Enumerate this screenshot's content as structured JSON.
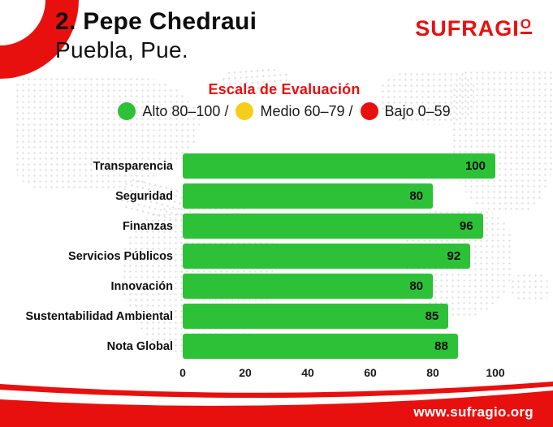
{
  "header": {
    "rank_name": "2. Pepe Chedraui",
    "location": "Puebla, Pue.",
    "logo_text": "SUFRAGI",
    "logo_o": "O"
  },
  "legend": {
    "title": "Escala de Evaluación",
    "items": [
      {
        "name": "high",
        "label": "Alto 80–100 /",
        "color": "#2DC137"
      },
      {
        "name": "medium",
        "label": "Medio 60–79 /",
        "color": "#F5CE1B"
      },
      {
        "name": "low",
        "label": "Bajo 0–59",
        "color": "#E8100E"
      }
    ]
  },
  "chart_data": {
    "type": "bar",
    "orientation": "horizontal",
    "title": "Escala de Evaluación",
    "categories": [
      "Transparencia",
      "Seguridad",
      "Finanzas",
      "Servicios Públicos",
      "Innovación",
      "Sustentabilidad Ambiental",
      "Nota Global"
    ],
    "values": [
      100,
      80,
      96,
      92,
      80,
      85,
      88
    ],
    "xlim": [
      0,
      100
    ],
    "x_ticks": [
      0,
      20,
      40,
      60,
      80,
      100
    ],
    "bar_color": "#2DC137",
    "grid": false,
    "value_labels": "inside-end"
  },
  "footer": {
    "url": "www.sufragio.org"
  },
  "colors": {
    "brand_red": "#E8100E",
    "bar_green": "#2DC137",
    "legend_yellow": "#F5CE1B",
    "map_dot": "#D9D9D9"
  }
}
